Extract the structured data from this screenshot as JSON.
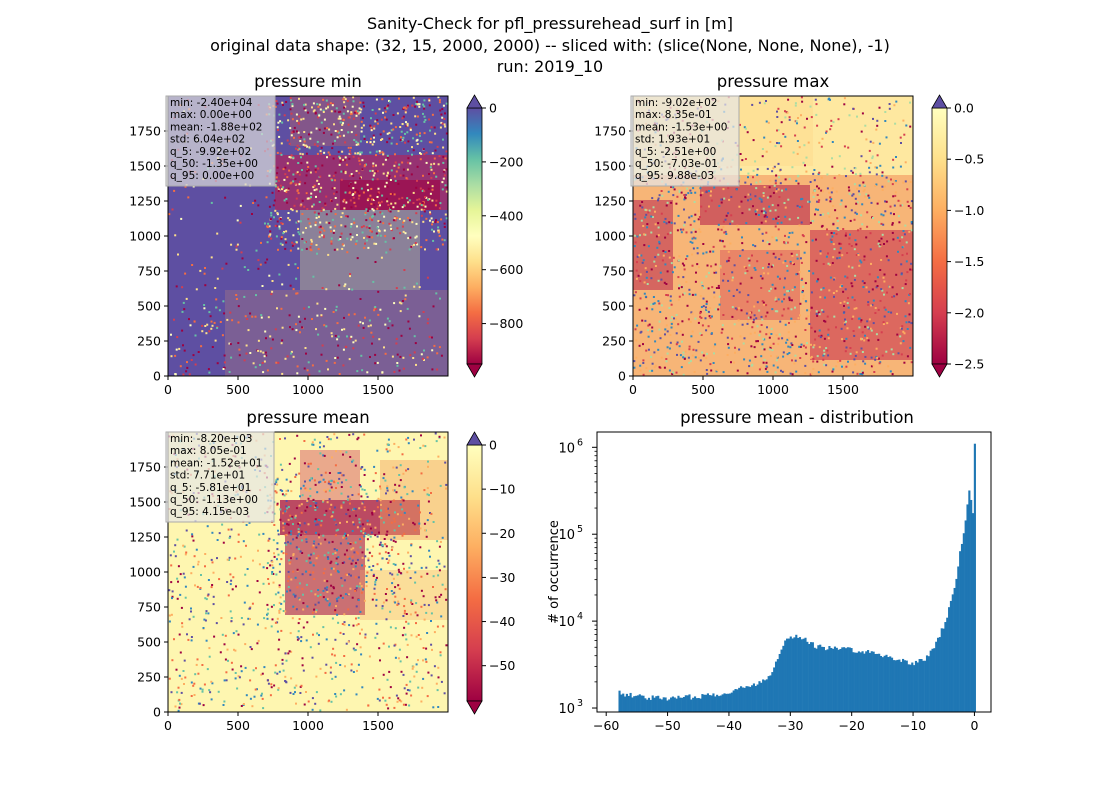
{
  "figure": {
    "title_line1": "Sanity-Check for pfl_pressurehead_surf in [m]",
    "title_line2": "original data shape: (32, 15, 2000, 2000) -- sliced with: (slice(None, None, None), -1)",
    "title_line3": "run: 2019_10"
  },
  "panels": [
    {
      "title": "pressure min",
      "stats": [
        "min: -2.40e+04",
        "max: 0.00e+00",
        "mean: -1.88e+02",
        "std: 6.04e+02",
        "q_5: -9.92e+02",
        "q_50: -1.35e+00",
        "q_95: 0.00e+00"
      ],
      "colorbar_ticks": [
        "0",
        "−200",
        "−400",
        "−600",
        "−800"
      ],
      "colorbar_range": [
        -950,
        0
      ]
    },
    {
      "title": "pressure max",
      "stats": [
        "min: -9.02e+02",
        "max: 8.35e-01",
        "mean: -1.53e+00",
        "std: 1.93e+01",
        "q_5: -2.51e+00",
        "q_50: -7.03e-01",
        "q_95: 9.88e-03"
      ],
      "colorbar_ticks": [
        "0.0",
        "−0.5",
        "−1.0",
        "−1.5",
        "−2.0",
        "−2.5"
      ],
      "colorbar_range": [
        -2.5,
        0
      ]
    },
    {
      "title": "pressure mean",
      "stats": [
        "min: -8.20e+03",
        "max: 8.05e-01",
        "mean: -1.52e+01",
        "std: 7.71e+01",
        "q_5: -5.81e+01",
        "q_50: -1.13e+00",
        "q_95: 4.15e-03"
      ],
      "colorbar_ticks": [
        "0",
        "−10",
        "−20",
        "−30",
        "−40",
        "−50"
      ],
      "colorbar_range": [
        -58,
        0
      ]
    }
  ],
  "map_axes": {
    "x_ticks": [
      "0",
      "500",
      "1000",
      "1500"
    ],
    "y_ticks": [
      "0",
      "250",
      "500",
      "750",
      "1000",
      "1250",
      "1500",
      "1750"
    ]
  },
  "colormap": "Spectral",
  "chart_data": [
    {
      "type": "heatmap",
      "title": "pressure min",
      "x": [
        0,
        2000
      ],
      "y": [
        0,
        2000
      ],
      "value_range": [
        -950,
        0
      ],
      "colorbar_ticks": [
        0,
        -200,
        -400,
        -600,
        -800
      ]
    },
    {
      "type": "heatmap",
      "title": "pressure max",
      "x": [
        0,
        2000
      ],
      "y": [
        0,
        2000
      ],
      "value_range": [
        -2.5,
        0
      ],
      "colorbar_ticks": [
        0.0,
        -0.5,
        -1.0,
        -1.5,
        -2.0,
        -2.5
      ]
    },
    {
      "type": "heatmap",
      "title": "pressure mean",
      "x": [
        0,
        2000
      ],
      "y": [
        0,
        2000
      ],
      "value_range": [
        -58,
        0
      ],
      "colorbar_ticks": [
        0,
        -10,
        -20,
        -30,
        -40,
        -50
      ]
    },
    {
      "type": "bar",
      "title": "pressure mean - distribution",
      "xlabel": "",
      "ylabel": "# of occurrence",
      "y_scale": "log",
      "ylim": [
        900,
        1500000
      ],
      "xlim": [
        -61.5,
        2.7
      ],
      "x_ticks": [
        "−60",
        "−50",
        "−40",
        "−30",
        "−20",
        "−10",
        "0"
      ],
      "y_ticks": [
        {
          "base": "10",
          "exp": "3"
        },
        {
          "base": "10",
          "exp": "4"
        },
        {
          "base": "10",
          "exp": "5"
        },
        {
          "base": "10",
          "exp": "6"
        }
      ],
      "color": "#1f77b4",
      "x": [
        -58,
        -56,
        -54,
        -52,
        -50,
        -48,
        -46,
        -44,
        -42,
        -40,
        -38,
        -36,
        -34,
        -33,
        -32,
        -31,
        -30,
        -29,
        -28,
        -27,
        -26,
        -25,
        -24,
        -22,
        -20,
        -18,
        -16,
        -14,
        -12,
        -10,
        -8,
        -7,
        -6,
        -5,
        -4,
        -3,
        -2.5,
        -2,
        -1.5,
        -1.2,
        -1,
        -0.8,
        -0.5,
        -0.3,
        -0.15,
        0
      ],
      "y": [
        1500,
        1400,
        1350,
        1300,
        1300,
        1320,
        1350,
        1400,
        1450,
        1550,
        1700,
        1850,
        2200,
        2800,
        4200,
        5800,
        6800,
        6700,
        6200,
        5700,
        5200,
        5000,
        4900,
        4800,
        4700,
        4500,
        4200,
        3900,
        3500,
        3300,
        3700,
        4700,
        6500,
        9500,
        16000,
        35000,
        60000,
        100000,
        160000,
        250000,
        330000,
        280000,
        200000,
        170000,
        1100000,
        1000
      ]
    }
  ]
}
